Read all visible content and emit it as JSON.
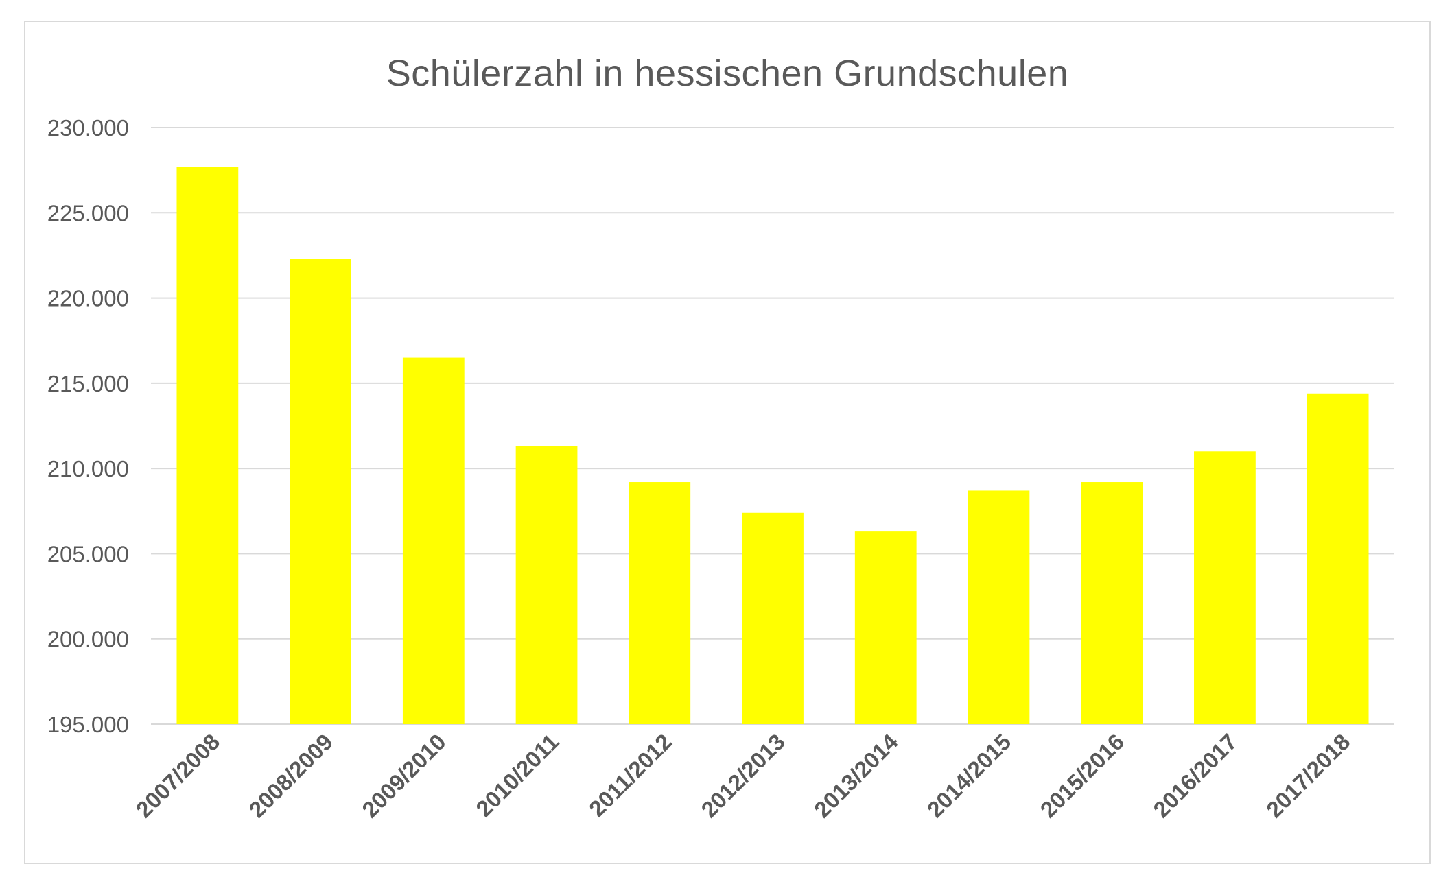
{
  "chart_data": {
    "type": "bar",
    "title": "Schülerzahl in hessischen Grundschulen",
    "xlabel": "",
    "ylabel": "",
    "categories": [
      "2007/2008",
      "2008/2009",
      "2009/2010",
      "2010/2011",
      "2011/2012",
      "2012/2013",
      "2013/2014",
      "2014/2015",
      "2015/2016",
      "2016/2017",
      "2017/2018"
    ],
    "values": [
      227700,
      222300,
      216500,
      211300,
      209200,
      207400,
      206300,
      208700,
      209200,
      211000,
      214400
    ],
    "ylim": [
      195000,
      230000
    ],
    "yticks": [
      195000,
      200000,
      205000,
      210000,
      215000,
      220000,
      225000,
      230000
    ],
    "ytick_labels": [
      "195.000",
      "200.000",
      "205.000",
      "210.000",
      "215.000",
      "220.000",
      "225.000",
      "230.000"
    ],
    "grid": true,
    "legend": "none",
    "bar_color": "#FFFF00",
    "grid_color": "#D9D9D9",
    "text_color": "#595959"
  }
}
